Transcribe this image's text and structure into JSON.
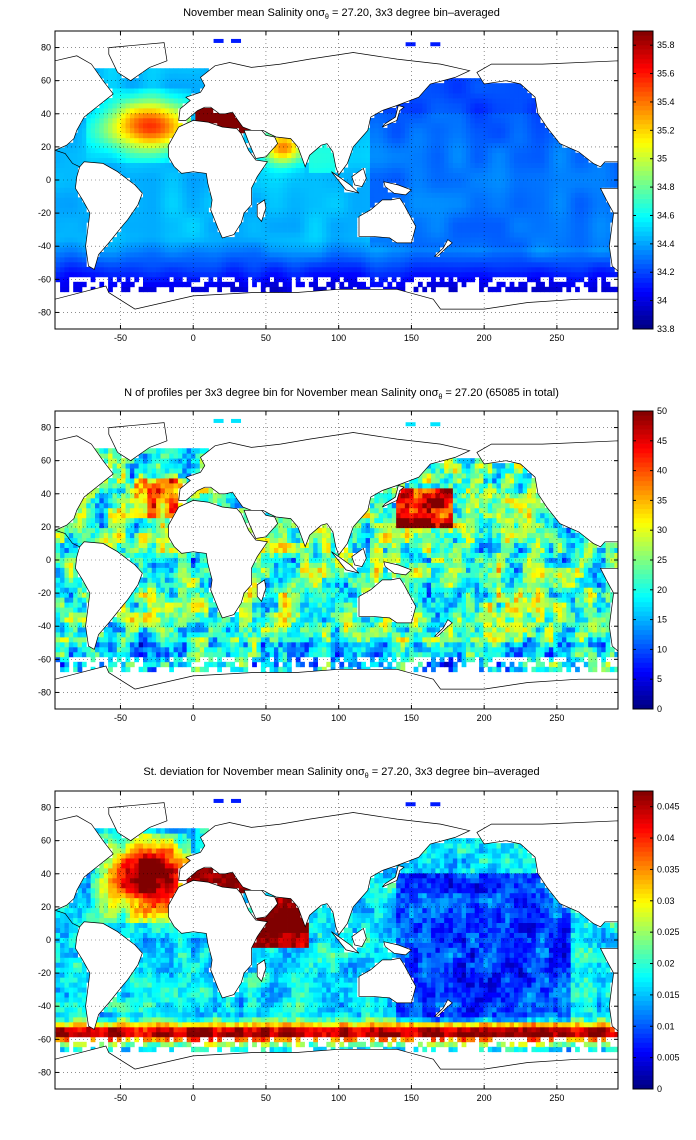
{
  "chart_data": [
    {
      "type": "heatmap",
      "title": "November mean Salinity on σθ = 27.20, 3x3 degree bin–averaged",
      "title_parts": {
        "pre": "November mean Salinity on",
        "sym": "σ",
        "sub": "θ",
        "post": " = 27.20, 3x3 degree bin–averaged"
      },
      "xlim": [
        -95,
        292
      ],
      "ylim": [
        -90,
        90
      ],
      "xticks": [
        -50,
        0,
        50,
        100,
        150,
        200,
        250
      ],
      "yticks": [
        -80,
        -60,
        -40,
        -20,
        0,
        20,
        40,
        60,
        80
      ],
      "grid": true,
      "colorbar": {
        "min": 33.8,
        "max": 35.9,
        "ticks": [
          33.8,
          34,
          34.2,
          34.4,
          34.6,
          34.8,
          35,
          35.2,
          35.4,
          35.6,
          35.8
        ],
        "tick_labels": [
          "33.8",
          "34",
          "34.2",
          "34.4",
          "34.6",
          "34.8",
          "35",
          "35.2",
          "35.4",
          "35.6",
          "35.8"
        ],
        "colormap": "jet"
      },
      "field": "salinity"
    },
    {
      "type": "heatmap",
      "title": "N of profiles per 3x3 degree bin for November mean Salinity on σθ = 27.20 (65085 in total)",
      "title_parts": {
        "pre": "N of profiles per 3x3 degree bin for November mean Salinity on",
        "sym": "σ",
        "sub": "θ",
        "post": " = 27.20 (65085 in total)"
      },
      "xlim": [
        -95,
        292
      ],
      "ylim": [
        -90,
        90
      ],
      "xticks": [
        -50,
        0,
        50,
        100,
        150,
        200,
        250
      ],
      "yticks": [
        -80,
        -60,
        -40,
        -20,
        0,
        20,
        40,
        60,
        80
      ],
      "grid": true,
      "colorbar": {
        "min": 0,
        "max": 50,
        "ticks": [
          0,
          5,
          10,
          15,
          20,
          25,
          30,
          35,
          40,
          45,
          50
        ],
        "tick_labels": [
          "0",
          "5",
          "10",
          "15",
          "20",
          "25",
          "30",
          "35",
          "40",
          "45",
          "50"
        ],
        "colormap": "jet"
      },
      "field": "count"
    },
    {
      "type": "heatmap",
      "title": "St. deviation for November mean Salinity on σθ = 27.20, 3x3 degree bin–averaged",
      "title_parts": {
        "pre": "St. deviation for November mean Salinity on",
        "sym": "σ",
        "sub": "θ",
        "post": " = 27.20, 3x3 degree bin–averaged"
      },
      "xlim": [
        -95,
        292
      ],
      "ylim": [
        -90,
        90
      ],
      "xticks": [
        -50,
        0,
        50,
        100,
        150,
        200,
        250
      ],
      "yticks": [
        -80,
        -60,
        -40,
        -20,
        0,
        20,
        40,
        60,
        80
      ],
      "grid": true,
      "colorbar": {
        "min": 0,
        "max": 0.0475,
        "ticks": [
          0,
          0.005,
          0.01,
          0.015,
          0.02,
          0.025,
          0.03,
          0.035,
          0.04,
          0.045
        ],
        "tick_labels": [
          "0",
          "0.005",
          "0.01",
          "0.015",
          "0.02",
          "0.025",
          "0.03",
          "0.035",
          "0.04",
          "0.045"
        ],
        "colormap": "jet"
      },
      "field": "stdev"
    }
  ]
}
